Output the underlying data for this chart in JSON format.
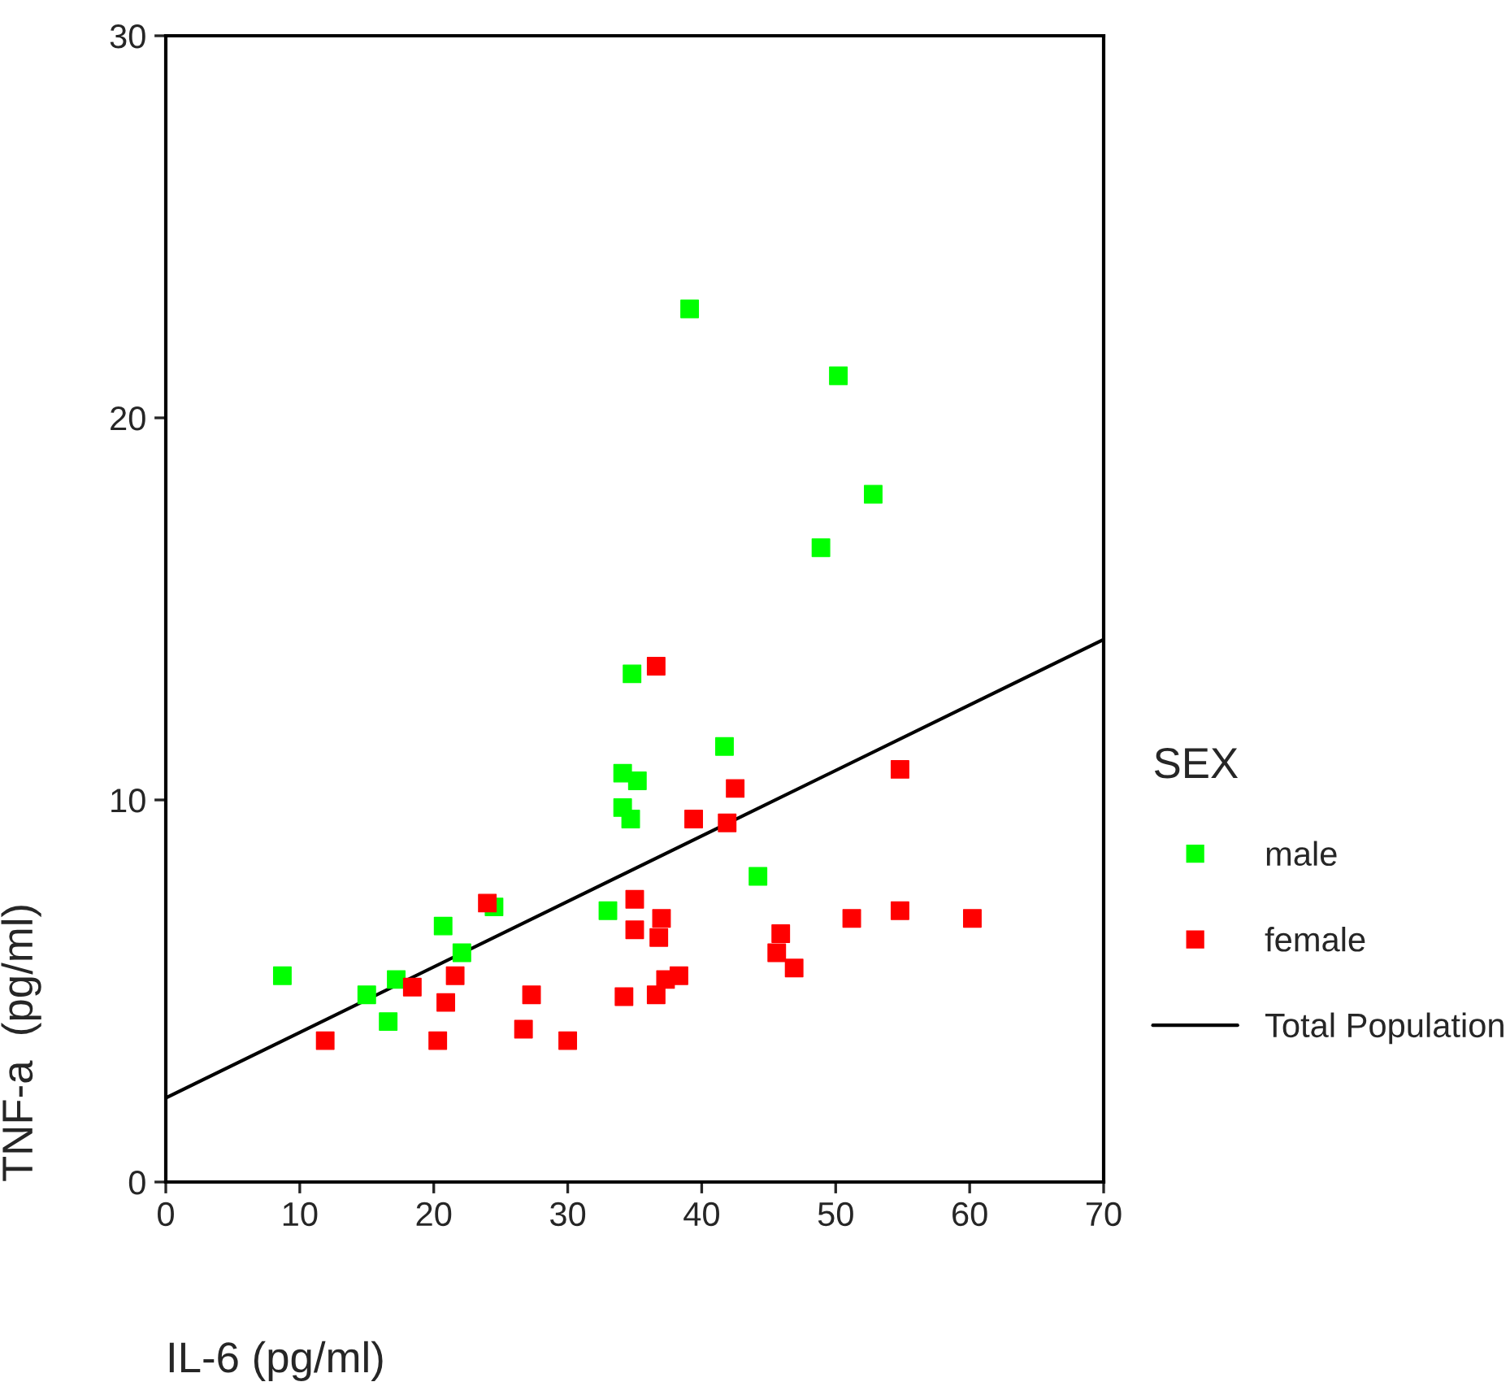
{
  "chart_data": {
    "type": "scatter",
    "xlabel": "IL-6 (pg/ml)",
    "ylabel": "TNF-a  (pg/ml)",
    "legend_title": "SEX",
    "legend": "right",
    "grid": false,
    "marker": "square",
    "xlim": [
      0,
      70
    ],
    "ylim": [
      0,
      30
    ],
    "xticks": [
      0,
      10,
      20,
      30,
      40,
      50,
      60,
      70
    ],
    "yticks": [
      0,
      10,
      20,
      30
    ],
    "series": [
      {
        "name": "male",
        "color": "#00ff00",
        "x": [
          39.1,
          50.2,
          52.8,
          48.9,
          34.8,
          41.7,
          34.1,
          35.2,
          34.1,
          34.7,
          44.2,
          33.0,
          24.5,
          20.7,
          22.1,
          8.7,
          17.2,
          15.0,
          16.6
        ],
        "values": [
          22.85,
          21.1,
          18.0,
          16.6,
          13.3,
          11.4,
          10.7,
          10.5,
          9.8,
          9.5,
          8.0,
          7.1,
          7.2,
          6.7,
          6.0,
          5.4,
          5.3,
          4.9,
          4.2
        ]
      },
      {
        "name": "female",
        "color": "#ff0000",
        "x": [
          36.6,
          39.4,
          42.5,
          41.9,
          54.8,
          24.0,
          35.0,
          35.0,
          37.0,
          36.8,
          45.9,
          45.6,
          46.9,
          51.2,
          54.8,
          60.2,
          18.4,
          21.6,
          20.9,
          27.3,
          34.2,
          36.6,
          37.3,
          38.3,
          11.9,
          20.3,
          26.7,
          30.0
        ],
        "values": [
          13.5,
          9.5,
          10.3,
          9.4,
          10.8,
          7.3,
          7.4,
          6.6,
          6.9,
          6.4,
          6.5,
          6.0,
          5.6,
          6.9,
          7.1,
          6.9,
          5.1,
          5.4,
          4.7,
          4.9,
          4.85,
          4.9,
          5.3,
          5.4,
          3.7,
          3.7,
          4.0,
          3.7
        ]
      },
      {
        "name": "Total Population",
        "type": "line",
        "color": "#000000",
        "marker": "none",
        "line_style": "solid",
        "x": [
          0,
          70
        ],
        "values": [
          2.2,
          14.2
        ]
      }
    ]
  }
}
